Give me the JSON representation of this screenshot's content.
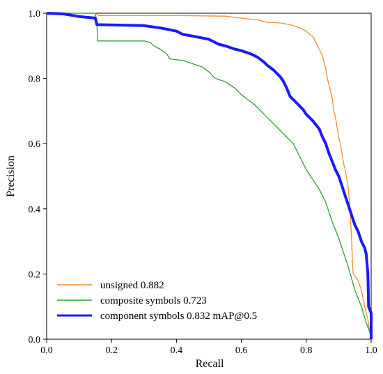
{
  "chart_data": {
    "type": "line",
    "title": "",
    "xlabel": "Recall",
    "ylabel": "Precision",
    "xlim": [
      0,
      1
    ],
    "ylim": [
      0,
      1
    ],
    "xticks": [
      "0.0",
      "0.2",
      "0.4",
      "0.6",
      "0.8",
      "1.0"
    ],
    "yticks": [
      "0.0",
      "0.2",
      "0.4",
      "0.6",
      "0.8",
      "1.0"
    ],
    "grid": false,
    "legend_position": "bottom-left",
    "series": [
      {
        "name": "unsigned 0.882",
        "color": "#f28e2b",
        "line_width": "thin",
        "points": [
          [
            0,
            1.0
          ],
          [
            0.15,
            1.0
          ],
          [
            0.16,
            0.993
          ],
          [
            0.4,
            0.993
          ],
          [
            0.55,
            0.991
          ],
          [
            0.6,
            0.985
          ],
          [
            0.65,
            0.98
          ],
          [
            0.68,
            0.972
          ],
          [
            0.72,
            0.97
          ],
          [
            0.75,
            0.965
          ],
          [
            0.78,
            0.955
          ],
          [
            0.8,
            0.945
          ],
          [
            0.81,
            0.935
          ],
          [
            0.82,
            0.93
          ],
          [
            0.83,
            0.91
          ],
          [
            0.84,
            0.89
          ],
          [
            0.85,
            0.87
          ],
          [
            0.855,
            0.85
          ],
          [
            0.86,
            0.83
          ],
          [
            0.865,
            0.8
          ],
          [
            0.87,
            0.78
          ],
          [
            0.875,
            0.76
          ],
          [
            0.88,
            0.74
          ],
          [
            0.885,
            0.7
          ],
          [
            0.89,
            0.68
          ],
          [
            0.895,
            0.65
          ],
          [
            0.9,
            0.62
          ],
          [
            0.905,
            0.6
          ],
          [
            0.91,
            0.57
          ],
          [
            0.915,
            0.54
          ],
          [
            0.92,
            0.52
          ],
          [
            0.925,
            0.49
          ],
          [
            0.93,
            0.46
          ],
          [
            0.935,
            0.4
          ],
          [
            0.937,
            0.36
          ],
          [
            0.94,
            0.3
          ],
          [
            0.943,
            0.22
          ],
          [
            0.945,
            0.2
          ],
          [
            0.96,
            0.18
          ],
          [
            0.97,
            0.15
          ],
          [
            0.98,
            0.1
          ],
          [
            0.99,
            0.06
          ],
          [
            1.0,
            0.0
          ]
        ]
      },
      {
        "name": "composite symbols 0.723",
        "color": "#2ca02c",
        "line_width": "thin",
        "points": [
          [
            0,
            1.0
          ],
          [
            0.15,
            1.0
          ],
          [
            0.155,
            0.965
          ],
          [
            0.157,
            0.915
          ],
          [
            0.3,
            0.915
          ],
          [
            0.32,
            0.91
          ],
          [
            0.33,
            0.9
          ],
          [
            0.35,
            0.89
          ],
          [
            0.37,
            0.875
          ],
          [
            0.38,
            0.86
          ],
          [
            0.42,
            0.855
          ],
          [
            0.45,
            0.845
          ],
          [
            0.48,
            0.835
          ],
          [
            0.5,
            0.82
          ],
          [
            0.52,
            0.8
          ],
          [
            0.55,
            0.79
          ],
          [
            0.58,
            0.77
          ],
          [
            0.6,
            0.75
          ],
          [
            0.62,
            0.735
          ],
          [
            0.64,
            0.72
          ],
          [
            0.66,
            0.7
          ],
          [
            0.68,
            0.68
          ],
          [
            0.7,
            0.66
          ],
          [
            0.72,
            0.64
          ],
          [
            0.74,
            0.62
          ],
          [
            0.76,
            0.6
          ],
          [
            0.78,
            0.56
          ],
          [
            0.8,
            0.52
          ],
          [
            0.82,
            0.49
          ],
          [
            0.84,
            0.46
          ],
          [
            0.86,
            0.42
          ],
          [
            0.88,
            0.36
          ],
          [
            0.9,
            0.31
          ],
          [
            0.91,
            0.28
          ],
          [
            0.93,
            0.22
          ],
          [
            0.95,
            0.15
          ],
          [
            0.97,
            0.1
          ],
          [
            0.985,
            0.05
          ],
          [
            1.0,
            0.01
          ]
        ]
      },
      {
        "name": "component symbols 0.832 mAP@0.5",
        "color": "#1a1aff",
        "line_width": "thick",
        "points": [
          [
            0,
            1.0
          ],
          [
            0.05,
            0.998
          ],
          [
            0.1,
            0.99
          ],
          [
            0.15,
            0.985
          ],
          [
            0.155,
            0.965
          ],
          [
            0.3,
            0.962
          ],
          [
            0.35,
            0.955
          ],
          [
            0.4,
            0.945
          ],
          [
            0.42,
            0.935
          ],
          [
            0.45,
            0.93
          ],
          [
            0.5,
            0.92
          ],
          [
            0.53,
            0.905
          ],
          [
            0.55,
            0.9
          ],
          [
            0.58,
            0.89
          ],
          [
            0.6,
            0.885
          ],
          [
            0.63,
            0.875
          ],
          [
            0.65,
            0.865
          ],
          [
            0.67,
            0.85
          ],
          [
            0.68,
            0.84
          ],
          [
            0.7,
            0.825
          ],
          [
            0.72,
            0.805
          ],
          [
            0.73,
            0.79
          ],
          [
            0.74,
            0.77
          ],
          [
            0.75,
            0.745
          ],
          [
            0.77,
            0.725
          ],
          [
            0.79,
            0.705
          ],
          [
            0.8,
            0.69
          ],
          [
            0.82,
            0.67
          ],
          [
            0.84,
            0.645
          ],
          [
            0.85,
            0.62
          ],
          [
            0.86,
            0.6
          ],
          [
            0.87,
            0.57
          ],
          [
            0.88,
            0.545
          ],
          [
            0.89,
            0.52
          ],
          [
            0.9,
            0.5
          ],
          [
            0.91,
            0.47
          ],
          [
            0.92,
            0.44
          ],
          [
            0.93,
            0.41
          ],
          [
            0.94,
            0.38
          ],
          [
            0.95,
            0.35
          ],
          [
            0.96,
            0.33
          ],
          [
            0.97,
            0.3
          ],
          [
            0.98,
            0.28
          ],
          [
            0.985,
            0.26
          ],
          [
            0.99,
            0.2
          ],
          [
            0.992,
            0.1
          ],
          [
            1.0,
            0.08
          ],
          [
            1.0,
            0.0
          ]
        ]
      }
    ]
  }
}
